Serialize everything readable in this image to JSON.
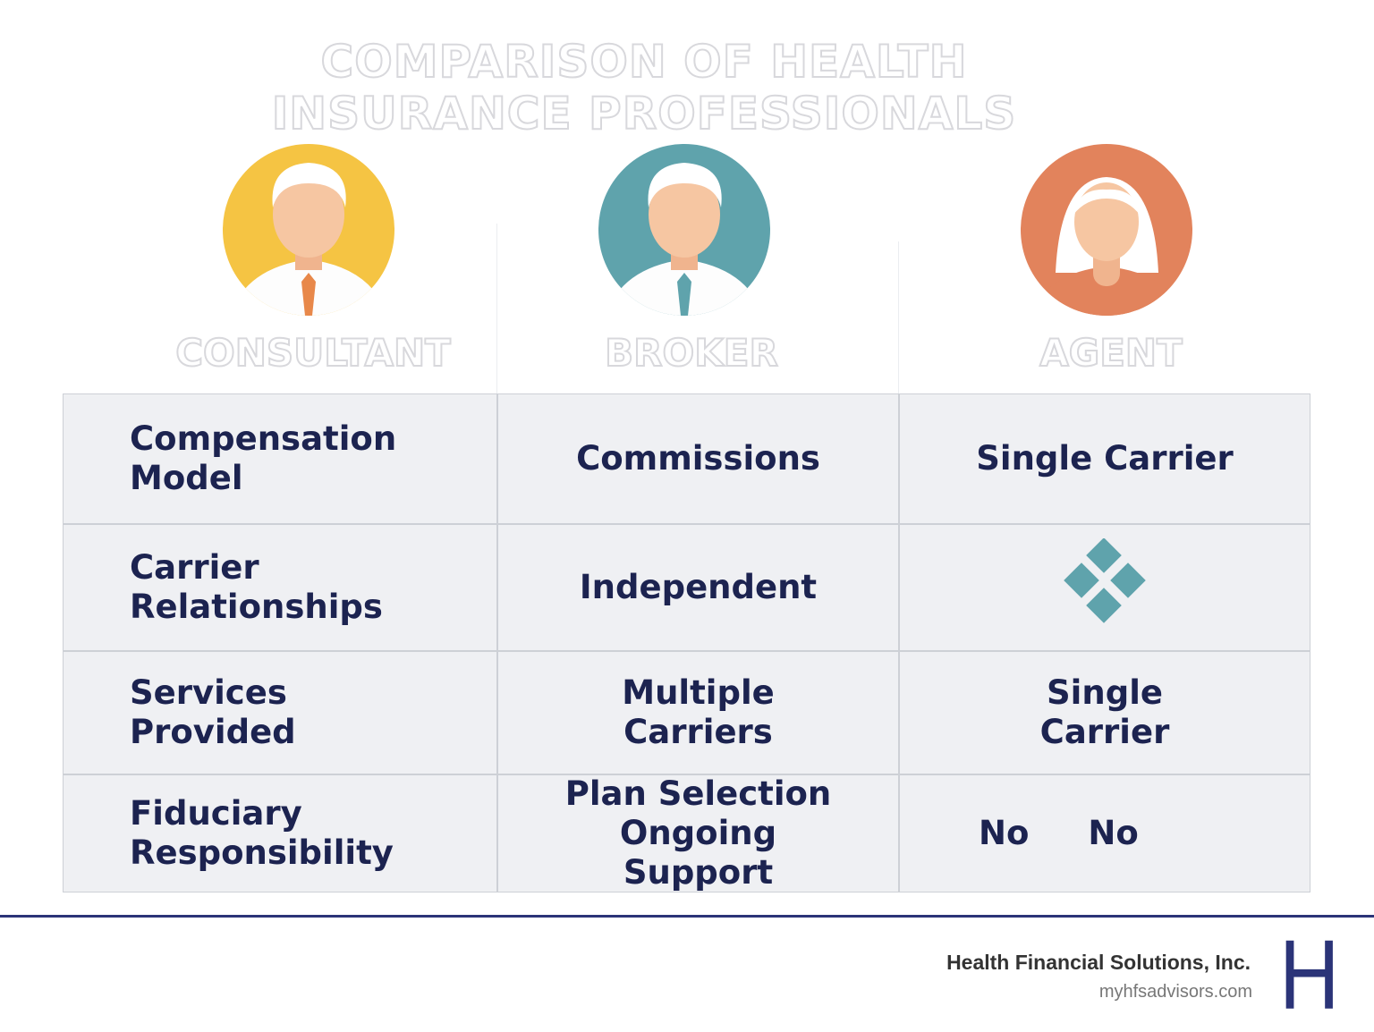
{
  "title": "COMPARISON OF HEALTH INSURANCE PROFESSIONALS",
  "columns": [
    "CONSULTANT",
    "BROKER",
    "AGENT"
  ],
  "table": {
    "rows": [
      [
        "Compensation Model",
        "Commissions",
        "Single Carrier"
      ],
      [
        "Carrier Relationships",
        "Independent"
      ],
      [
        "Services Provided",
        "Multiple Carriers",
        "Single Carrier"
      ],
      [
        "Fiduciary Responsibility",
        "Plan Selection Ongoing Support",
        [
          "No",
          "No"
        ]
      ]
    ]
  },
  "footer": {
    "company": "Health Financial Solutions, Inc.",
    "website": "myhfsadvisors.com",
    "logo": "H"
  }
}
